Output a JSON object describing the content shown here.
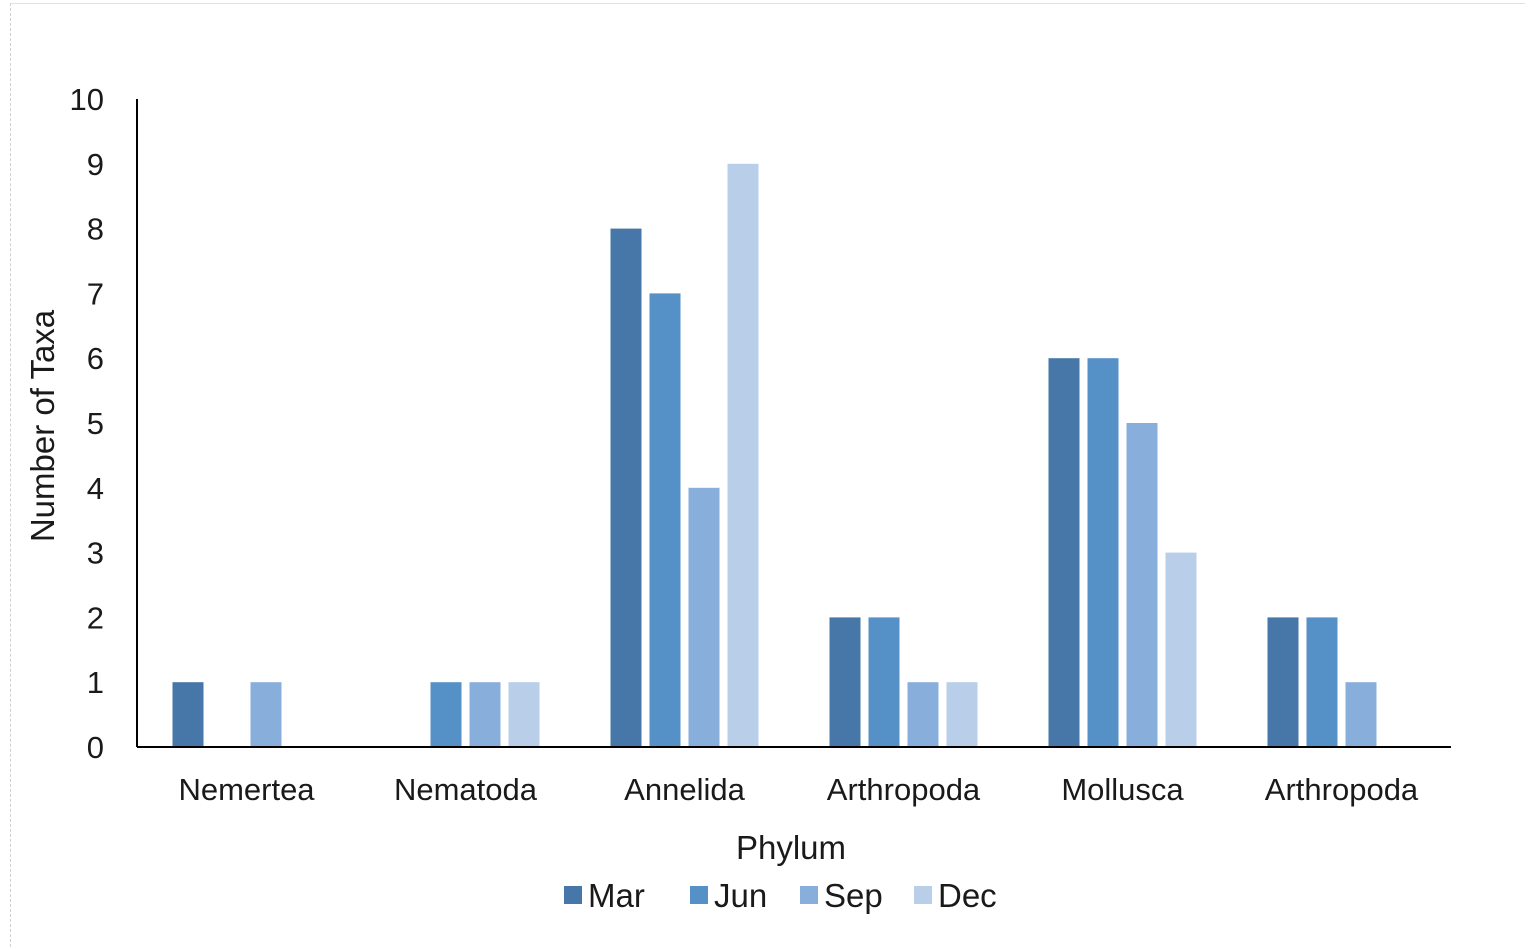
{
  "chart_data": {
    "type": "bar",
    "title": "",
    "xlabel": "Phylum",
    "ylabel": "Number of Taxa",
    "ylim": [
      0,
      10
    ],
    "yticks": [
      0,
      1,
      2,
      3,
      4,
      5,
      6,
      7,
      8,
      9,
      10
    ],
    "grid": false,
    "legend_position": "bottom",
    "categories": [
      "Nemertea",
      "Nematoda",
      "Annelida",
      "Arthropoda",
      "Mollusca",
      "Arthropoda"
    ],
    "series": [
      {
        "name": "Mar",
        "color": "#4677a8",
        "values": [
          1,
          0,
          8,
          2,
          6,
          2
        ]
      },
      {
        "name": "Jun",
        "color": "#5590c6",
        "values": [
          0,
          1,
          7,
          2,
          6,
          2
        ]
      },
      {
        "name": "Sep",
        "color": "#88afdb",
        "values": [
          1,
          1,
          4,
          1,
          5,
          1
        ]
      },
      {
        "name": "Dec",
        "color": "#b9cee9",
        "values": [
          0,
          1,
          9,
          1,
          3,
          0
        ]
      }
    ]
  }
}
